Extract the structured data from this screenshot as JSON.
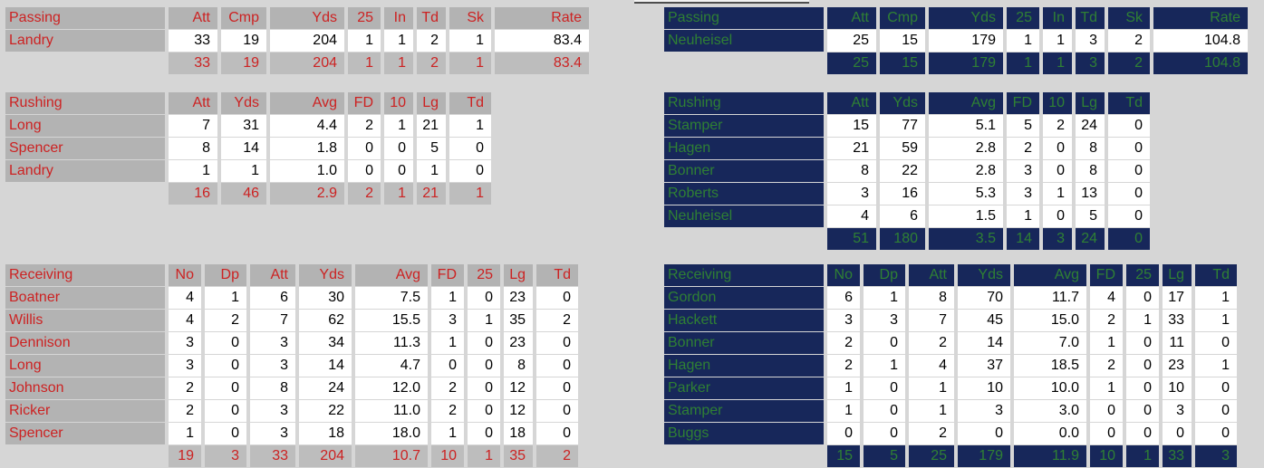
{
  "page": {
    "background": "#d6d6d6"
  },
  "teams": [
    {
      "side": "left",
      "theme": {
        "label_bg": "#b3b3b3",
        "label_text": "#cc2222",
        "value_bg": "#ffffff",
        "value_text": "#000000",
        "totals_bg": "#bdbdbd",
        "totals_text": "#cc2222"
      },
      "passing": {
        "title": "Passing",
        "columns": [
          "Att",
          "Cmp",
          "Yds",
          "25",
          "In",
          "Td",
          "Sk",
          "Rate"
        ],
        "rows": [
          {
            "name": "Landry",
            "values": [
              "33",
              "19",
              "204",
              "1",
              "1",
              "2",
              "1",
              "83.4"
            ]
          }
        ],
        "totals": [
          "33",
          "19",
          "204",
          "1",
          "1",
          "2",
          "1",
          "83.4"
        ]
      },
      "rushing": {
        "title": "Rushing",
        "columns": [
          "Att",
          "Yds",
          "Avg",
          "FD",
          "10",
          "Lg",
          "Td"
        ],
        "rows": [
          {
            "name": "Long",
            "values": [
              "7",
              "31",
              "4.4",
              "2",
              "1",
              "21",
              "1"
            ]
          },
          {
            "name": "Spencer",
            "values": [
              "8",
              "14",
              "1.8",
              "0",
              "0",
              "5",
              "0"
            ]
          },
          {
            "name": "Landry",
            "values": [
              "1",
              "1",
              "1.0",
              "0",
              "0",
              "1",
              "0"
            ]
          }
        ],
        "totals": [
          "16",
          "46",
          "2.9",
          "2",
          "1",
          "21",
          "1"
        ]
      },
      "receiving": {
        "title": "Receiving",
        "columns": [
          "No",
          "Dp",
          "Att",
          "Yds",
          "Avg",
          "FD",
          "25",
          "Lg",
          "Td"
        ],
        "rows": [
          {
            "name": "Boatner",
            "values": [
              "4",
              "1",
              "6",
              "30",
              "7.5",
              "1",
              "0",
              "23",
              "0"
            ]
          },
          {
            "name": "Willis",
            "values": [
              "4",
              "2",
              "7",
              "62",
              "15.5",
              "3",
              "1",
              "35",
              "2"
            ]
          },
          {
            "name": "Dennison",
            "values": [
              "3",
              "0",
              "3",
              "34",
              "11.3",
              "1",
              "0",
              "23",
              "0"
            ]
          },
          {
            "name": "Long",
            "values": [
              "3",
              "0",
              "3",
              "14",
              "4.7",
              "0",
              "0",
              "8",
              "0"
            ]
          },
          {
            "name": "Johnson",
            "values": [
              "2",
              "0",
              "8",
              "24",
              "12.0",
              "2",
              "0",
              "12",
              "0"
            ]
          },
          {
            "name": "Ricker",
            "values": [
              "2",
              "0",
              "3",
              "22",
              "11.0",
              "2",
              "0",
              "12",
              "0"
            ]
          },
          {
            "name": "Spencer",
            "values": [
              "1",
              "0",
              "3",
              "18",
              "18.0",
              "1",
              "0",
              "18",
              "0"
            ]
          }
        ],
        "totals": [
          "19",
          "3",
          "33",
          "204",
          "10.7",
          "10",
          "1",
          "35",
          "2"
        ]
      }
    },
    {
      "side": "right",
      "theme": {
        "label_bg": "#17275a",
        "label_text": "#2f8034",
        "value_bg": "#ffffff",
        "value_text": "#000000",
        "totals_bg": "#17275a",
        "totals_text": "#2f8034"
      },
      "passing": {
        "title": "Passing",
        "columns": [
          "Att",
          "Cmp",
          "Yds",
          "25",
          "In",
          "Td",
          "Sk",
          "Rate"
        ],
        "rows": [
          {
            "name": "Neuheisel",
            "values": [
              "25",
              "15",
              "179",
              "1",
              "1",
              "3",
              "2",
              "104.8"
            ]
          }
        ],
        "totals": [
          "25",
          "15",
          "179",
          "1",
          "1",
          "3",
          "2",
          "104.8"
        ]
      },
      "rushing": {
        "title": "Rushing",
        "columns": [
          "Att",
          "Yds",
          "Avg",
          "FD",
          "10",
          "Lg",
          "Td"
        ],
        "rows": [
          {
            "name": "Stamper",
            "values": [
              "15",
              "77",
              "5.1",
              "5",
              "2",
              "24",
              "0"
            ]
          },
          {
            "name": "Hagen",
            "values": [
              "21",
              "59",
              "2.8",
              "2",
              "0",
              "8",
              "0"
            ]
          },
          {
            "name": "Bonner",
            "values": [
              "8",
              "22",
              "2.8",
              "3",
              "0",
              "8",
              "0"
            ]
          },
          {
            "name": "Roberts",
            "values": [
              "3",
              "16",
              "5.3",
              "3",
              "1",
              "13",
              "0"
            ]
          },
          {
            "name": "Neuheisel",
            "values": [
              "4",
              "6",
              "1.5",
              "1",
              "0",
              "5",
              "0"
            ]
          }
        ],
        "totals": [
          "51",
          "180",
          "3.5",
          "14",
          "3",
          "24",
          "0"
        ]
      },
      "receiving": {
        "title": "Receiving",
        "columns": [
          "No",
          "Dp",
          "Att",
          "Yds",
          "Avg",
          "FD",
          "25",
          "Lg",
          "Td"
        ],
        "rows": [
          {
            "name": "Gordon",
            "values": [
              "6",
              "1",
              "8",
              "70",
              "11.7",
              "4",
              "0",
              "17",
              "1"
            ]
          },
          {
            "name": "Hackett",
            "values": [
              "3",
              "3",
              "7",
              "45",
              "15.0",
              "2",
              "1",
              "33",
              "1"
            ]
          },
          {
            "name": "Bonner",
            "values": [
              "2",
              "0",
              "2",
              "14",
              "7.0",
              "1",
              "0",
              "11",
              "0"
            ]
          },
          {
            "name": "Hagen",
            "values": [
              "2",
              "1",
              "4",
              "37",
              "18.5",
              "2",
              "0",
              "23",
              "1"
            ]
          },
          {
            "name": "Parker",
            "values": [
              "1",
              "0",
              "1",
              "10",
              "10.0",
              "1",
              "0",
              "10",
              "0"
            ]
          },
          {
            "name": "Stamper",
            "values": [
              "1",
              "0",
              "1",
              "3",
              "3.0",
              "0",
              "0",
              "3",
              "0"
            ]
          },
          {
            "name": "Buggs",
            "values": [
              "0",
              "0",
              "2",
              "0",
              "0.0",
              "0",
              "0",
              "0",
              "0"
            ]
          }
        ],
        "totals": [
          "15",
          "5",
          "25",
          "179",
          "11.9",
          "10",
          "1",
          "33",
          "3"
        ]
      }
    }
  ]
}
